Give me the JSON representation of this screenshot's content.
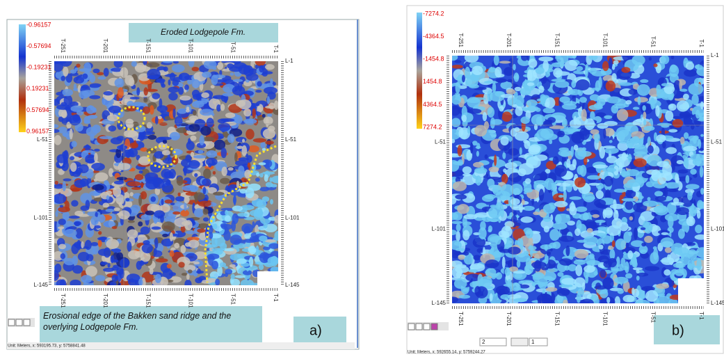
{
  "panel_a": {
    "colorbar_labels": [
      "-0.96157",
      "-0.57694",
      "-0.19231",
      "0.19231",
      "0.57694",
      "0.96157"
    ],
    "top_axis_labels": [
      "T-251",
      "T-201",
      "T-151",
      "T-101",
      "T-51",
      "T-1"
    ],
    "bottom_axis_labels": [
      "T-251",
      "T-201",
      "T-151",
      "T-101",
      "T-51",
      "T-1"
    ],
    "left_axis_labels": [
      "L-51",
      "L-101",
      "L-145"
    ],
    "right_axis_labels": [
      "L-1",
      "L-51",
      "L-101",
      "L-145"
    ],
    "annotations": [
      "Eroded Lodgepole Fm.",
      "Erosional edge of the Bakken sand ridge and the overlying Lodgepole Fm."
    ],
    "panel_label": "a)",
    "status_bar": "Unit: Meters, x: 593195.73, y: 5758841.48"
  },
  "panel_b": {
    "colorbar_labels": [
      "-7274.2",
      "-4364.5",
      "-1454.8",
      "1454.8",
      "4364.5",
      "7274.2"
    ],
    "top_axis_labels": [
      "T-251",
      "T-201",
      "T-151",
      "T-101",
      "T-51",
      "T-1"
    ],
    "bottom_axis_labels": [
      "T-251",
      "T-201",
      "T-151",
      "T-101",
      "T-51",
      "T-1"
    ],
    "left_axis_labels": [
      "L-51",
      "L-101",
      "L-145"
    ],
    "right_axis_labels": [
      "L-1",
      "L-51",
      "L-101",
      "L-145"
    ],
    "panel_label": "b)",
    "status_bar": "Unit: Meters, x: 592655.14, y: 5759244.27",
    "spinner_value": "2",
    "page_value": "1"
  }
}
